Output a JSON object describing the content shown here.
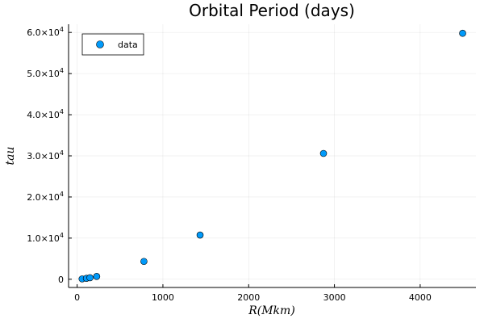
{
  "chart_data": {
    "type": "scatter",
    "title": "Orbital Period (days)",
    "xlabel": "R(Mkm)",
    "ylabel": "tau",
    "xlim": [
      -100,
      4650
    ],
    "ylim": [
      -2000,
      62000
    ],
    "xticks": [
      0,
      1000,
      2000,
      3000,
      4000
    ],
    "yticks": [
      0,
      10000,
      20000,
      30000,
      40000,
      50000,
      60000
    ],
    "ytick_mantissas": [
      "0",
      "1.0",
      "2.0",
      "3.0",
      "4.0",
      "5.0",
      "6.0"
    ],
    "ytick_base": "×10",
    "ytick_exponent": "4",
    "grid": true,
    "legend_position": "top-left",
    "series": [
      {
        "name": "data",
        "color": "#009AFA",
        "x": [
          57.9,
          108.2,
          149.6,
          227.9,
          778.6,
          1433.5,
          2872.5,
          4495.1
        ],
        "y": [
          88,
          224.7,
          365.2,
          687,
          4331,
          10747,
          30589,
          59800
        ]
      }
    ]
  }
}
